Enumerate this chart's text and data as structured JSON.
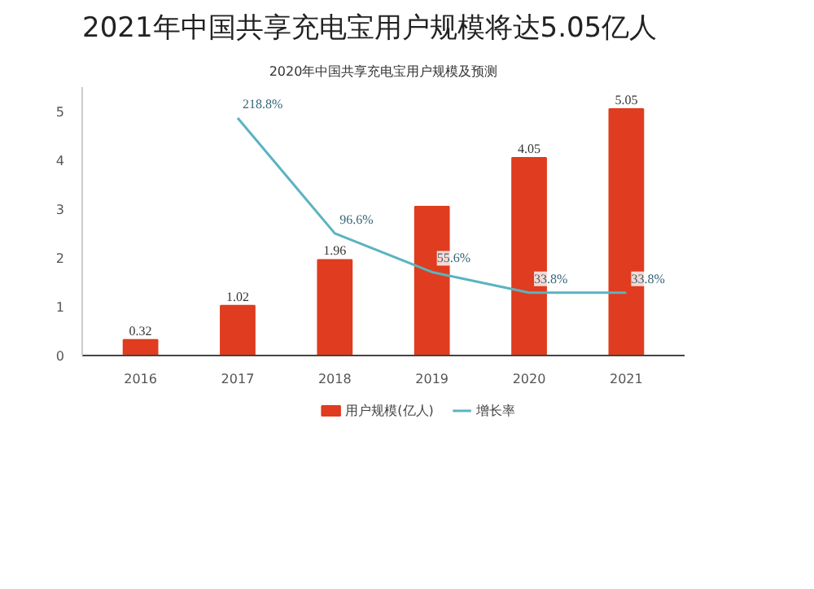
{
  "chart_data": {
    "type": "bar",
    "title": "2021年中国共享充电宝用户规模将达5.05亿人",
    "subtitle": "2020年中国共享充电宝用户规模及预测",
    "categories": [
      "2016",
      "2017",
      "2018",
      "2019",
      "2020",
      "2021"
    ],
    "series": [
      {
        "name": "用户规模(亿人)",
        "color": "#e03c1f",
        "values": [
          0.32,
          1.02,
          1.96,
          3.05,
          4.05,
          5.05
        ],
        "value_labels": [
          "0.32",
          "1.02",
          "1.96",
          null,
          "4.05",
          "5.05"
        ]
      },
      {
        "name": "增长率",
        "type": "line",
        "axis": "y2",
        "color": "#5bb3c0",
        "values": [
          null,
          218.8,
          96.6,
          55.6,
          33.8,
          33.8
        ],
        "value_labels": [
          null,
          "218.8%",
          "96.6%",
          "55.6%",
          "33.8%",
          "33.8%"
        ]
      }
    ],
    "ylim": [
      0,
      5.5
    ],
    "yticks": [
      0,
      1,
      2,
      3,
      4,
      5
    ],
    "grid": false,
    "legend": "bottom",
    "marker": "none"
  }
}
